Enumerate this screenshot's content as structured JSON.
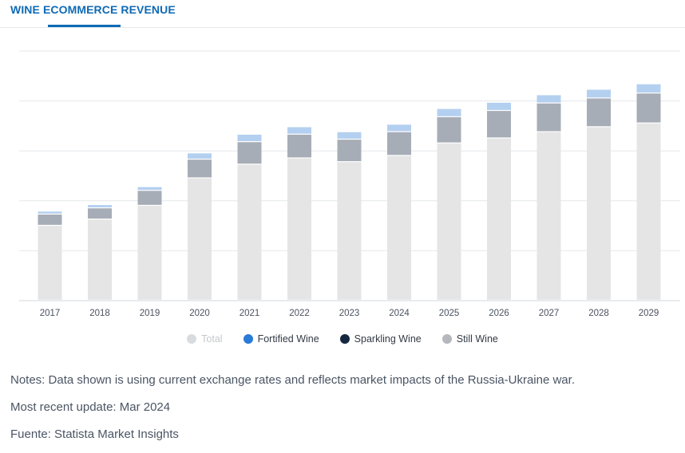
{
  "header": {
    "tab_title": "WINE ECOMMERCE REVENUE"
  },
  "colors": {
    "accent": "#0f6ab4",
    "total": "#e5e5e5",
    "still_wine": "#a7adb6",
    "sparkling_wine": "#14273f",
    "fortified_wine": "#b4d0f0",
    "gridline": "#e4e7ea"
  },
  "chart_data": {
    "type": "bar",
    "stacked": true,
    "categories": [
      "2017",
      "2018",
      "2019",
      "2020",
      "2021",
      "2022",
      "2023",
      "2024",
      "2025",
      "2026",
      "2027",
      "2028",
      "2029"
    ],
    "series": [
      {
        "name": "Total",
        "color": "#e5e5e5",
        "values": [
          3.0,
          3.25,
          3.8,
          4.9,
          5.45,
          5.7,
          5.55,
          5.8,
          6.3,
          6.5,
          6.75,
          6.95,
          7.1
        ]
      },
      {
        "name": "Still Wine",
        "color": "#a7adb6",
        "values": [
          0.45,
          0.45,
          0.6,
          0.75,
          0.9,
          0.95,
          0.9,
          0.95,
          1.05,
          1.1,
          1.15,
          1.15,
          1.2
        ]
      },
      {
        "name": "Fortified Wine",
        "color": "#b4d0f0",
        "values": [
          0.12,
          0.13,
          0.15,
          0.25,
          0.3,
          0.3,
          0.3,
          0.3,
          0.33,
          0.33,
          0.33,
          0.35,
          0.37
        ]
      }
    ],
    "ylim": [
      0,
      10
    ],
    "y_tick_step": 2,
    "y_tick_labels_shown": false,
    "grid": true,
    "legend_position": "bottom-center",
    "xlabel": "",
    "ylabel": ""
  },
  "legend": [
    {
      "label": "Total",
      "color": "#d9dcdf",
      "muted": true
    },
    {
      "label": "Fortified Wine",
      "color": "#2a7ad8",
      "muted": false
    },
    {
      "label": "Sparkling Wine",
      "color": "#14273f",
      "muted": false
    },
    {
      "label": "Still Wine",
      "color": "#b4b8bd",
      "muted": false
    }
  ],
  "notes": {
    "line1": "Notes: Data shown is using current exchange rates and reflects market impacts of the Russia-Ukraine war.",
    "line2": "Most recent update: Mar 2024",
    "line3": "Fuente: Statista Market Insights"
  }
}
